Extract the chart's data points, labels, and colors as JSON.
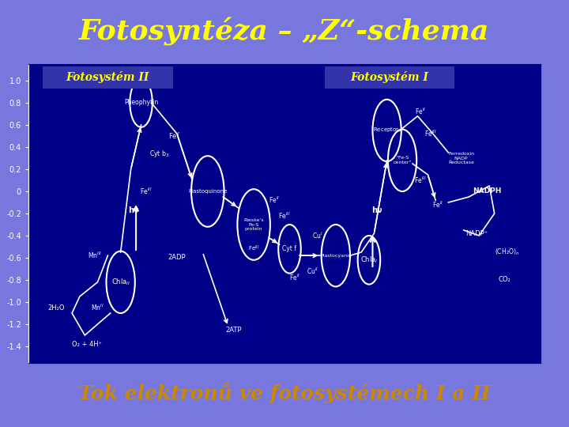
{
  "title": "Fotosyntéza – „Z“-schema",
  "title_color": "#FFFF00",
  "title_bg": "#3333CC",
  "subtitle1": "Fotosystém II",
  "subtitle2": "Fotosystém I",
  "subtitle_color": "#FFFF00",
  "subtitle_bg": "#3333AA",
  "footer": "Tok elektronů ve fotosystémech I a II",
  "footer_color": "#CC8800",
  "footer_bg": "#4444DD",
  "outer_bg": "#7777DD",
  "diagram_bg": "#000088",
  "diagram_text": "#FFFFFF",
  "circle_edge": "#FFFFFF",
  "arrow_color": "#FFFFFF",
  "y_labels": [
    "1.0",
    "0.8",
    "0.6",
    "0.4",
    "0.2",
    "0",
    "-0.2",
    "-0.4",
    "-0.6",
    "-0.8",
    "-1.0",
    "-1.2",
    "-1.4"
  ],
  "y_values": [
    1.0,
    0.8,
    0.6,
    0.4,
    0.2,
    0.0,
    -0.2,
    -0.4,
    -0.6,
    -0.8,
    -1.0,
    -1.2,
    -1.4
  ]
}
